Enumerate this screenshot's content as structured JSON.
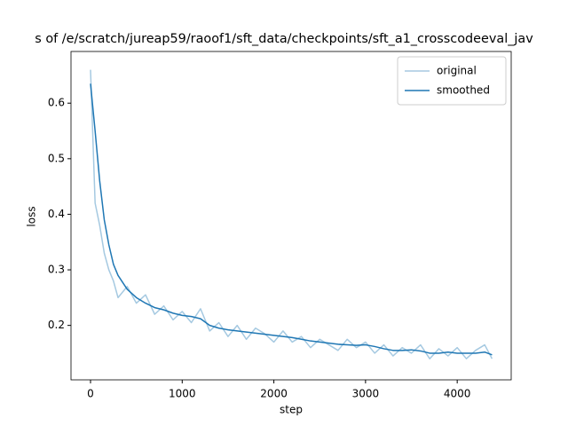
{
  "chart_data": {
    "type": "line",
    "title": "s of /e/scratch/jureap59/raoof1/sft_data/checkpoints/sft_a1_crosscodeeval_jav",
    "x_label": "step",
    "y_label": "loss",
    "x": [
      0,
      50,
      100,
      150,
      200,
      250,
      300,
      400,
      500,
      600,
      700,
      800,
      900,
      1000,
      1100,
      1200,
      1300,
      1400,
      1500,
      1600,
      1700,
      1800,
      1900,
      2000,
      2100,
      2200,
      2300,
      2400,
      2500,
      2600,
      2700,
      2800,
      2900,
      3000,
      3100,
      3200,
      3300,
      3400,
      3500,
      3600,
      3700,
      3800,
      3900,
      4000,
      4100,
      4200,
      4300,
      4380
    ],
    "series": [
      {
        "name": "original",
        "color": "#a5c9e1",
        "values": [
          0.66,
          0.42,
          0.38,
          0.33,
          0.3,
          0.28,
          0.25,
          0.27,
          0.24,
          0.255,
          0.22,
          0.235,
          0.21,
          0.225,
          0.205,
          0.23,
          0.19,
          0.205,
          0.18,
          0.2,
          0.175,
          0.195,
          0.185,
          0.17,
          0.19,
          0.17,
          0.18,
          0.16,
          0.175,
          0.165,
          0.155,
          0.175,
          0.16,
          0.17,
          0.15,
          0.165,
          0.145,
          0.16,
          0.15,
          0.165,
          0.14,
          0.158,
          0.145,
          0.16,
          0.14,
          0.155,
          0.165,
          0.14
        ]
      },
      {
        "name": "smoothed",
        "color": "#1f77b4",
        "values": [
          0.635,
          0.55,
          0.46,
          0.39,
          0.345,
          0.31,
          0.29,
          0.265,
          0.25,
          0.24,
          0.232,
          0.228,
          0.222,
          0.218,
          0.216,
          0.212,
          0.2,
          0.195,
          0.192,
          0.19,
          0.188,
          0.186,
          0.184,
          0.182,
          0.18,
          0.178,
          0.175,
          0.172,
          0.17,
          0.168,
          0.166,
          0.165,
          0.164,
          0.165,
          0.162,
          0.158,
          0.155,
          0.155,
          0.156,
          0.154,
          0.15,
          0.15,
          0.152,
          0.15,
          0.15,
          0.15,
          0.152,
          0.147
        ]
      }
    ],
    "xlim": [
      -213,
      4589
    ],
    "xticks": [
      0,
      1000,
      2000,
      3000,
      4000
    ],
    "ylim": [
      0.102,
      0.693
    ],
    "yticks": [
      0.2,
      0.3,
      0.4,
      0.5,
      0.6
    ],
    "legend": "upper right"
  }
}
